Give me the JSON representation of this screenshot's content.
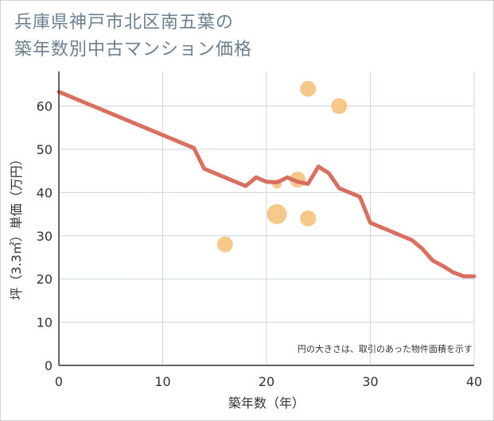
{
  "header": {
    "title_line1": "兵庫県神戸市北区南五葉の",
    "title_line2": "築年数別中古マンション価格"
  },
  "chart_data": {
    "type": "scatter+line",
    "title": "兵庫県神戸市北区南五葉の築年数別中古マンション価格",
    "xlabel": "築年数（年）",
    "ylabel": "坪（3.3㎡）単価（万円）",
    "xlim": [
      0,
      40
    ],
    "ylim": [
      0,
      68
    ],
    "xticks": [
      0,
      10,
      20,
      30,
      40
    ],
    "yticks": [
      0,
      10,
      20,
      30,
      40,
      50,
      60
    ],
    "note": "円の大きさは、取引のあった物件面積を示す",
    "colors": {
      "line": "#d9705f",
      "bubble": "#f5c27d",
      "grid": "#c9d6e3",
      "axis": "#333333"
    },
    "line": {
      "x": [
        0,
        13,
        14,
        18,
        19,
        20,
        21,
        22,
        23,
        24,
        25,
        26,
        27,
        29,
        30,
        34,
        35,
        36,
        37,
        38,
        39,
        40
      ],
      "y": [
        63.3,
        50.3,
        45.5,
        41.5,
        43.5,
        42.5,
        42.3,
        43.5,
        42.5,
        42.0,
        46.0,
        44.5,
        41.0,
        39.0,
        33.0,
        29.0,
        27.0,
        24.3,
        23.0,
        21.5,
        20.6,
        20.6
      ]
    },
    "bubbles": [
      {
        "x": 16,
        "y": 28,
        "size": 1.0
      },
      {
        "x": 21,
        "y": 35,
        "size": 1.25
      },
      {
        "x": 21,
        "y": 42,
        "size": 0.6
      },
      {
        "x": 23,
        "y": 43,
        "size": 1.0
      },
      {
        "x": 24,
        "y": 34,
        "size": 1.0
      },
      {
        "x": 24,
        "y": 64,
        "size": 1.0
      },
      {
        "x": 27,
        "y": 60,
        "size": 1.0
      }
    ]
  }
}
